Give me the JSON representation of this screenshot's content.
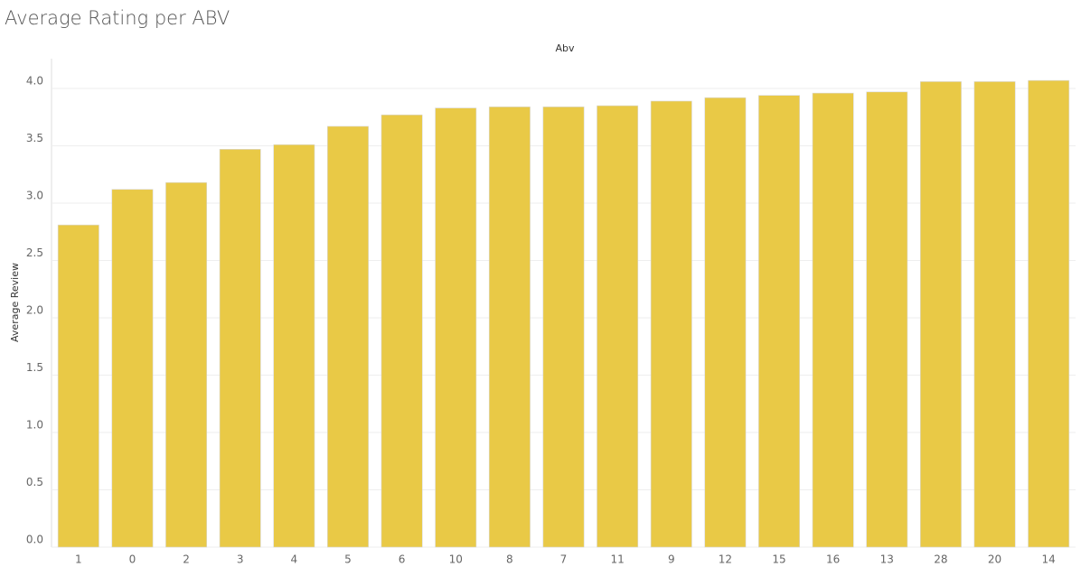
{
  "chart_data": {
    "type": "bar",
    "title": "Average Rating per ABV",
    "x_header": "Abv",
    "y_label": "Average Review",
    "categories": [
      "1",
      "0",
      "2",
      "3",
      "4",
      "5",
      "6",
      "10",
      "8",
      "7",
      "11",
      "9",
      "12",
      "15",
      "16",
      "13",
      "28",
      "20",
      "14"
    ],
    "values": [
      2.81,
      3.12,
      3.18,
      3.47,
      3.51,
      3.67,
      3.77,
      3.83,
      3.84,
      3.84,
      3.85,
      3.89,
      3.92,
      3.94,
      3.96,
      3.97,
      4.06,
      4.06,
      4.07
    ],
    "color": "#e9c946",
    "ylim": [
      0,
      4.26
    ],
    "yticks": [
      {
        "value": 0,
        "label": "0.0"
      },
      0.5,
      {
        "value": 1,
        "label": "1.0"
      },
      1.5,
      {
        "value": 2,
        "label": "2.0"
      },
      2.5,
      {
        "value": 3,
        "label": "3.0"
      },
      3.5,
      {
        "value": 4,
        "label": "4.0"
      }
    ],
    "grid": true
  }
}
